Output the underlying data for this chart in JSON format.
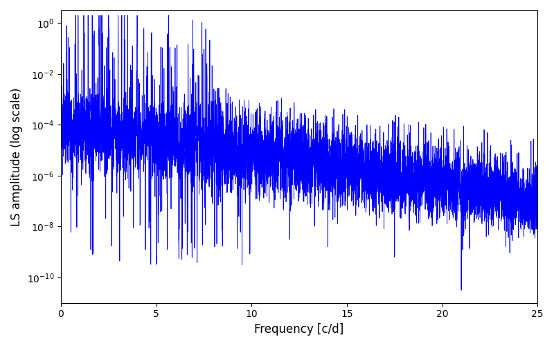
{
  "xlabel": "Frequency [c/d]",
  "ylabel": "LS amplitude (log scale)",
  "xlim": [
    0,
    25
  ],
  "ylim_log": [
    -11,
    0.5
  ],
  "line_color": "#0000ff",
  "line_width": 0.6,
  "background_color": "#ffffff",
  "figsize": [
    8.0,
    5.0
  ],
  "dpi": 100,
  "yscale": "log",
  "yticks": [
    1e-10,
    1e-08,
    1e-06,
    0.0001,
    0.01,
    1.0
  ],
  "xticks": [
    0,
    5,
    10,
    15,
    20,
    25
  ],
  "seed": 123,
  "n_points": 8000,
  "freq_max": 25.0
}
